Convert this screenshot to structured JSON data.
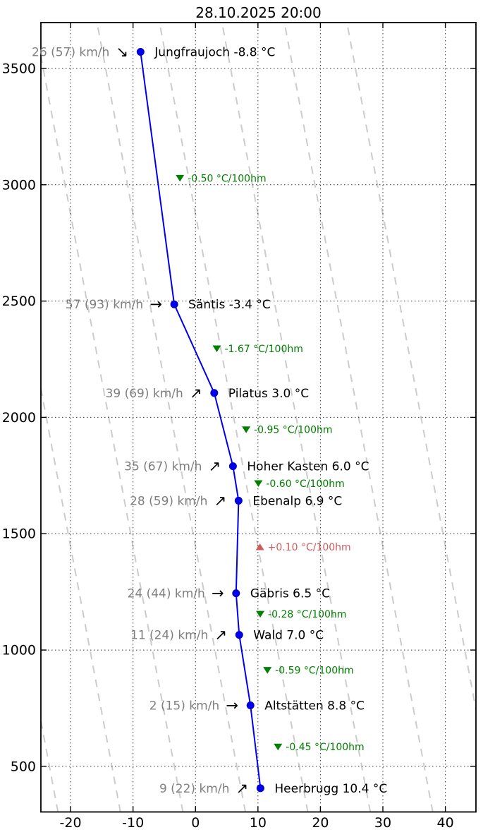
{
  "title": "28.10.2025 20:00",
  "colors": {
    "profile_blue": "#0000ee",
    "marker_blue": "#0000f0",
    "marker_edge": "#0000b0",
    "station_text": "#000000",
    "wind_text": "#7f7f7f",
    "arrow_black": "#000000",
    "cooling_green": "#008000",
    "warming_red": "#cd5c5c",
    "grid_dotted": "#333333",
    "adiabat_dashed": "#cccccc",
    "spine_black": "#000000"
  },
  "chart_data": {
    "type": "line",
    "title": "28.10.2025 20:00",
    "xlabel": "",
    "ylabel": "",
    "x_axis": {
      "unit": "°C",
      "ticks": [
        -20,
        -10,
        0,
        10,
        20,
        30,
        40
      ],
      "range": [
        -24.75,
        44.9
      ]
    },
    "y_axis": {
      "unit": "m",
      "ticks": [
        500,
        1000,
        1500,
        2000,
        2500,
        3000,
        3500
      ],
      "range": [
        304,
        3697
      ]
    },
    "grid": {
      "style": "dotted",
      "on": true
    },
    "legend": "none",
    "stations": [
      {
        "name": "Jungfraujoch",
        "label": "Jungfraujoch -8.8 °C",
        "temp_c": -8.8,
        "altitude_m": 3571,
        "wind_label": "26 (57) km/h",
        "wind_arrow": "↘"
      },
      {
        "name": "Säntis",
        "label": "Säntis -3.4 °C",
        "temp_c": -3.4,
        "altitude_m": 2486,
        "wind_label": "57 (93) km/h",
        "wind_arrow": "→"
      },
      {
        "name": "Pilatus",
        "label": "Pilatus 3.0 °C",
        "temp_c": 3.0,
        "altitude_m": 2105,
        "wind_label": "39 (69) km/h",
        "wind_arrow": "↗"
      },
      {
        "name": "Hoher Kasten",
        "label": "Hoher Kasten 6.0 °C",
        "temp_c": 6.0,
        "altitude_m": 1790,
        "wind_label": "35 (67) km/h",
        "wind_arrow": "↗"
      },
      {
        "name": "Ebenalp",
        "label": "Ebenalp 6.9 °C",
        "temp_c": 6.9,
        "altitude_m": 1642,
        "wind_label": "28 (59) km/h",
        "wind_arrow": "↗"
      },
      {
        "name": "Gäbris",
        "label": "Gäbris 6.5 °C",
        "temp_c": 6.5,
        "altitude_m": 1244,
        "wind_label": "24 (44) km/h",
        "wind_arrow": "→"
      },
      {
        "name": "Wald",
        "label": "Wald 7.0 °C",
        "temp_c": 7.0,
        "altitude_m": 1065,
        "wind_label": "11 (24) km/h",
        "wind_arrow": "↗"
      },
      {
        "name": "Altstätten",
        "label": "Altstätten 8.8 °C",
        "temp_c": 8.8,
        "altitude_m": 762,
        "wind_label": "2 (15) km/h",
        "wind_arrow": "→"
      },
      {
        "name": "Heerbrugg",
        "label": "Heerbrugg 10.4 °C",
        "temp_c": 10.4,
        "altitude_m": 406,
        "wind_label": "9 (22) km/h",
        "wind_arrow": "↗"
      }
    ],
    "gradient_labels": [
      {
        "text": "-0.50 °C/100hm",
        "trend": "down",
        "between": [
          "Jungfraujoch",
          "Säntis"
        ]
      },
      {
        "text": "-1.67 °C/100hm",
        "trend": "down",
        "between": [
          "Säntis",
          "Pilatus"
        ]
      },
      {
        "text": "-0.95 °C/100hm",
        "trend": "down",
        "between": [
          "Pilatus",
          "Hoher Kasten"
        ]
      },
      {
        "text": "-0.60 °C/100hm",
        "trend": "down",
        "between": [
          "Hoher Kasten",
          "Ebenalp"
        ]
      },
      {
        "text": "+0.10 °C/100hm",
        "trend": "up",
        "between": [
          "Ebenalp",
          "Gäbris"
        ]
      },
      {
        "text": "-0.28 °C/100hm",
        "trend": "down",
        "between": [
          "Gäbris",
          "Wald"
        ]
      },
      {
        "text": "-0.59 °C/100hm",
        "trend": "down",
        "between": [
          "Wald",
          "Altstätten"
        ]
      },
      {
        "text": "-0.45 °C/100hm",
        "trend": "down",
        "between": [
          "Altstätten",
          "Heerbrugg"
        ]
      }
    ],
    "reference_lines": {
      "description": "dashed adiabat reference lines",
      "lapse_c_per_100m": 0.7,
      "spacing_c": 10,
      "style": "dashed"
    }
  }
}
